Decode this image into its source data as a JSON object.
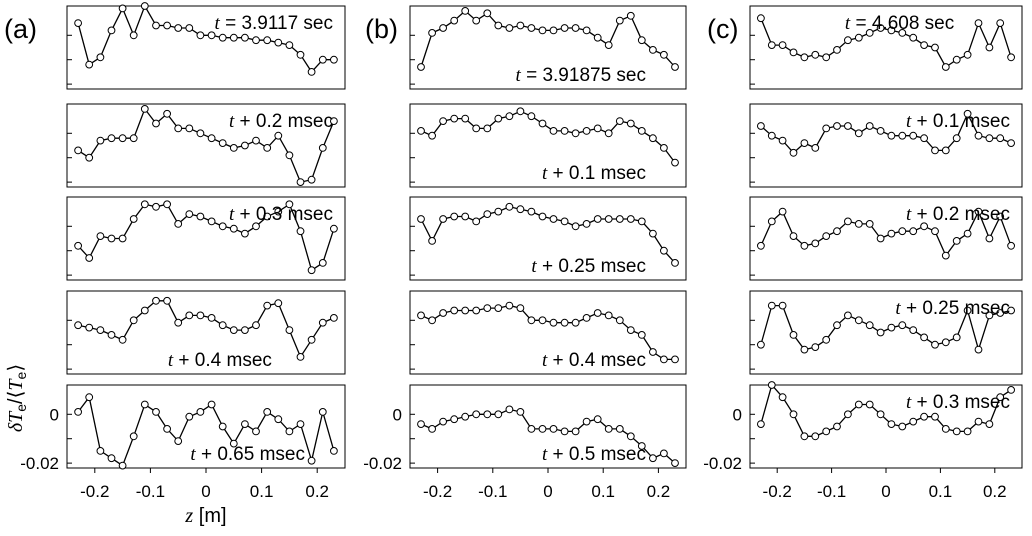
{
  "chart_data": {
    "type": "line",
    "ylabel_math": "δT_e/⟨T_e⟩",
    "ylabel_parts": {
      "delta": "δ",
      "T": "T",
      "sub": "e",
      "slash": "/⟨",
      "T2": "T",
      "sub2": "e",
      "close": "⟩"
    },
    "xlabel_math": "z [m]",
    "xlabel_parts": {
      "var": "z",
      "unit": " [m]"
    },
    "x": [
      -0.23,
      -0.21,
      -0.19,
      -0.17,
      -0.15,
      -0.13,
      -0.11,
      -0.09,
      -0.07,
      -0.05,
      -0.03,
      -0.01,
      0.01,
      0.03,
      0.05,
      0.07,
      0.09,
      0.11,
      0.13,
      0.15,
      0.17,
      0.19,
      0.21,
      0.23
    ],
    "xlim": [
      -0.25,
      0.25
    ],
    "xticks": [
      -0.2,
      -0.1,
      0,
      0.1,
      0.2
    ],
    "xtick_labels": [
      "-0.2",
      "-0.1",
      "0",
      "0.1",
      "0.2"
    ],
    "ylim": [
      -0.022,
      0.012
    ],
    "yticks": [
      0,
      -0.02
    ],
    "ytick_labels": [
      "0",
      "-0.02"
    ],
    "columns": [
      {
        "label": "(a)",
        "panels": [
          {
            "annotation": "t = 3.9117 sec",
            "ann_parts": {
              "var": "t",
              "rest": " = 3.9117 sec"
            },
            "ann_pos": "top-right",
            "values": [
              0.005,
              -0.012,
              -0.009,
              0.002,
              0.011,
              0.0,
              0.012,
              0.004,
              0.004,
              0.003,
              0.003,
              0.0,
              0.0,
              -0.001,
              -0.001,
              -0.001,
              -0.002,
              -0.002,
              -0.003,
              -0.004,
              -0.008,
              -0.015,
              -0.01,
              -0.01
            ]
          },
          {
            "annotation": "t + 0.2 msec",
            "ann_parts": {
              "var": "t",
              "rest": " + 0.2 msec"
            },
            "ann_pos": "top-right",
            "values": [
              -0.007,
              -0.01,
              -0.003,
              -0.002,
              -0.002,
              -0.002,
              0.01,
              0.004,
              0.008,
              0.002,
              0.002,
              -0.0,
              -0.002,
              -0.004,
              -0.006,
              -0.005,
              -0.003,
              -0.006,
              -0.001,
              -0.009,
              -0.02,
              -0.019,
              -0.006,
              0.005
            ]
          },
          {
            "annotation": "t + 0.3 msec",
            "ann_parts": {
              "var": "t",
              "rest": " + 0.3 msec"
            },
            "ann_pos": "top-right",
            "values": [
              -0.008,
              -0.013,
              -0.004,
              -0.005,
              -0.005,
              0.003,
              0.009,
              0.008,
              0.009,
              0.001,
              0.005,
              0.004,
              0.002,
              -0.0,
              -0.001,
              -0.003,
              -0.0,
              0.004,
              0.006,
              0.009,
              -0.002,
              -0.018,
              -0.015,
              -0.001
            ]
          },
          {
            "annotation": "t + 0.4 msec",
            "ann_parts": {
              "var": "t",
              "rest": " + 0.4 msec"
            },
            "ann_pos": "bottom-center",
            "values": [
              -0.002,
              -0.003,
              -0.004,
              -0.006,
              -0.008,
              0.0,
              0.004,
              0.008,
              0.008,
              -0.001,
              0.002,
              0.002,
              0.001,
              -0.002,
              -0.004,
              -0.004,
              -0.002,
              0.006,
              0.007,
              -0.004,
              -0.015,
              -0.008,
              -0.001,
              0.001
            ]
          },
          {
            "annotation": "t + 0.65 msec",
            "ann_parts": {
              "var": "t",
              "rest": " + 0.65 msec"
            },
            "ann_pos": "bottom-right",
            "values": [
              0.001,
              0.007,
              -0.015,
              -0.018,
              -0.021,
              -0.009,
              0.004,
              0.001,
              -0.006,
              -0.011,
              -0.001,
              0.001,
              0.004,
              -0.005,
              -0.012,
              -0.004,
              -0.007,
              0.001,
              -0.002,
              -0.007,
              -0.004,
              -0.019,
              0.001,
              -0.015
            ]
          }
        ]
      },
      {
        "label": "(b)",
        "panels": [
          {
            "annotation": "t = 3.91875 sec",
            "ann_parts": {
              "var": "t",
              "rest": " = 3.91875 sec"
            },
            "ann_pos": "bottom-right",
            "values": [
              -0.013,
              0.001,
              0.003,
              0.006,
              0.01,
              0.006,
              0.009,
              0.004,
              0.003,
              0.004,
              0.003,
              0.002,
              0.002,
              0.003,
              0.003,
              0.002,
              -0.001,
              -0.004,
              0.006,
              0.008,
              -0.002,
              -0.006,
              -0.008,
              -0.013
            ]
          },
          {
            "annotation": "t + 0.1 msec",
            "ann_parts": {
              "var": "t",
              "rest": " + 0.1 msec"
            },
            "ann_pos": "bottom-right",
            "values": [
              0.001,
              -0.001,
              0.005,
              0.006,
              0.006,
              0.002,
              0.002,
              0.006,
              0.007,
              0.009,
              0.007,
              0.004,
              0.001,
              0.001,
              0.0,
              0.001,
              0.002,
              0.0,
              0.005,
              0.004,
              0.001,
              -0.002,
              -0.006,
              -0.012
            ]
          },
          {
            "annotation": "t + 0.25 msec",
            "ann_parts": {
              "var": "t",
              "rest": " + 0.25 msec"
            },
            "ann_pos": "bottom-right",
            "values": [
              0.003,
              -0.006,
              0.003,
              0.004,
              0.004,
              0.002,
              0.005,
              0.006,
              0.008,
              0.007,
              0.006,
              0.004,
              0.003,
              0.002,
              0.0,
              0.001,
              0.003,
              0.003,
              0.003,
              0.003,
              0.002,
              -0.003,
              -0.01,
              -0.015
            ]
          },
          {
            "annotation": "t + 0.4 msec",
            "ann_parts": {
              "var": "t",
              "rest": " + 0.4 msec"
            },
            "ann_pos": "bottom-right",
            "values": [
              0.002,
              -0.0,
              0.003,
              0.004,
              0.004,
              0.004,
              0.005,
              0.005,
              0.006,
              0.005,
              0.0,
              0.0,
              -0.001,
              -0.001,
              -0.001,
              0.001,
              0.003,
              0.002,
              0.0,
              -0.004,
              -0.006,
              -0.013,
              -0.016,
              -0.016
            ]
          },
          {
            "annotation": "t + 0.5 msec",
            "ann_parts": {
              "var": "t",
              "rest": " + 0.5 msec"
            },
            "ann_pos": "bottom-right",
            "values": [
              -0.004,
              -0.006,
              -0.003,
              -0.002,
              -0.001,
              0.0,
              0.0,
              0.0,
              0.002,
              0.001,
              -0.006,
              -0.006,
              -0.006,
              -0.007,
              -0.007,
              -0.003,
              -0.002,
              -0.006,
              -0.006,
              -0.009,
              -0.013,
              -0.018,
              -0.016,
              -0.02
            ]
          }
        ]
      },
      {
        "label": "(c)",
        "panels": [
          {
            "annotation": "t = 4.608 sec",
            "ann_parts": {
              "var": "t",
              "rest": " = 4.608 sec"
            },
            "ann_pos": "top-center",
            "values": [
              0.007,
              -0.004,
              -0.004,
              -0.007,
              -0.009,
              -0.008,
              -0.009,
              -0.006,
              -0.002,
              -0.001,
              0.001,
              0.003,
              0.002,
              0.001,
              -0.001,
              -0.004,
              -0.005,
              -0.013,
              -0.01,
              -0.008,
              0.005,
              -0.005,
              0.005,
              -0.009
            ]
          },
          {
            "annotation": "t + 0.1 msec",
            "ann_parts": {
              "var": "t",
              "rest": " + 0.1 msec"
            },
            "ann_pos": "top-right",
            "values": [
              0.003,
              -0.001,
              -0.003,
              -0.008,
              -0.004,
              -0.006,
              0.002,
              0.003,
              0.003,
              0.0,
              0.003,
              0.001,
              -0.001,
              -0.001,
              -0.001,
              -0.002,
              -0.007,
              -0.007,
              -0.002,
              0.008,
              -0.001,
              -0.002,
              -0.002,
              -0.004
            ]
          },
          {
            "annotation": "t + 0.2 msec",
            "ann_parts": {
              "var": "t",
              "rest": " + 0.2 msec"
            },
            "ann_pos": "top-right",
            "values": [
              -0.008,
              0.002,
              0.006,
              -0.004,
              -0.008,
              -0.007,
              -0.004,
              -0.002,
              0.002,
              0.001,
              0.001,
              -0.005,
              -0.003,
              -0.002,
              -0.002,
              0.0,
              -0.002,
              -0.012,
              -0.006,
              -0.003,
              0.006,
              -0.005,
              0.004,
              -0.008
            ]
          },
          {
            "annotation": "t + 0.25 msec",
            "ann_parts": {
              "var": "t",
              "rest": " + 0.25 msec"
            },
            "ann_pos": "top-right",
            "values": [
              -0.01,
              0.006,
              0.006,
              -0.006,
              -0.012,
              -0.011,
              -0.008,
              -0.002,
              0.002,
              0.0,
              -0.002,
              -0.005,
              -0.003,
              -0.002,
              -0.004,
              -0.007,
              -0.01,
              -0.009,
              -0.007,
              0.004,
              -0.012,
              0.002,
              0.003,
              0.004
            ]
          },
          {
            "annotation": "t + 0.3 msec",
            "ann_parts": {
              "var": "t",
              "rest": " + 0.3 msec"
            },
            "ann_pos": "top-right",
            "values": [
              -0.004,
              0.012,
              0.007,
              0.0,
              -0.009,
              -0.009,
              -0.007,
              -0.005,
              0.0,
              0.004,
              0.004,
              0.0,
              -0.004,
              -0.005,
              -0.003,
              -0.001,
              -0.001,
              -0.006,
              -0.007,
              -0.007,
              -0.003,
              -0.004,
              0.007,
              0.01
            ]
          }
        ]
      }
    ]
  }
}
